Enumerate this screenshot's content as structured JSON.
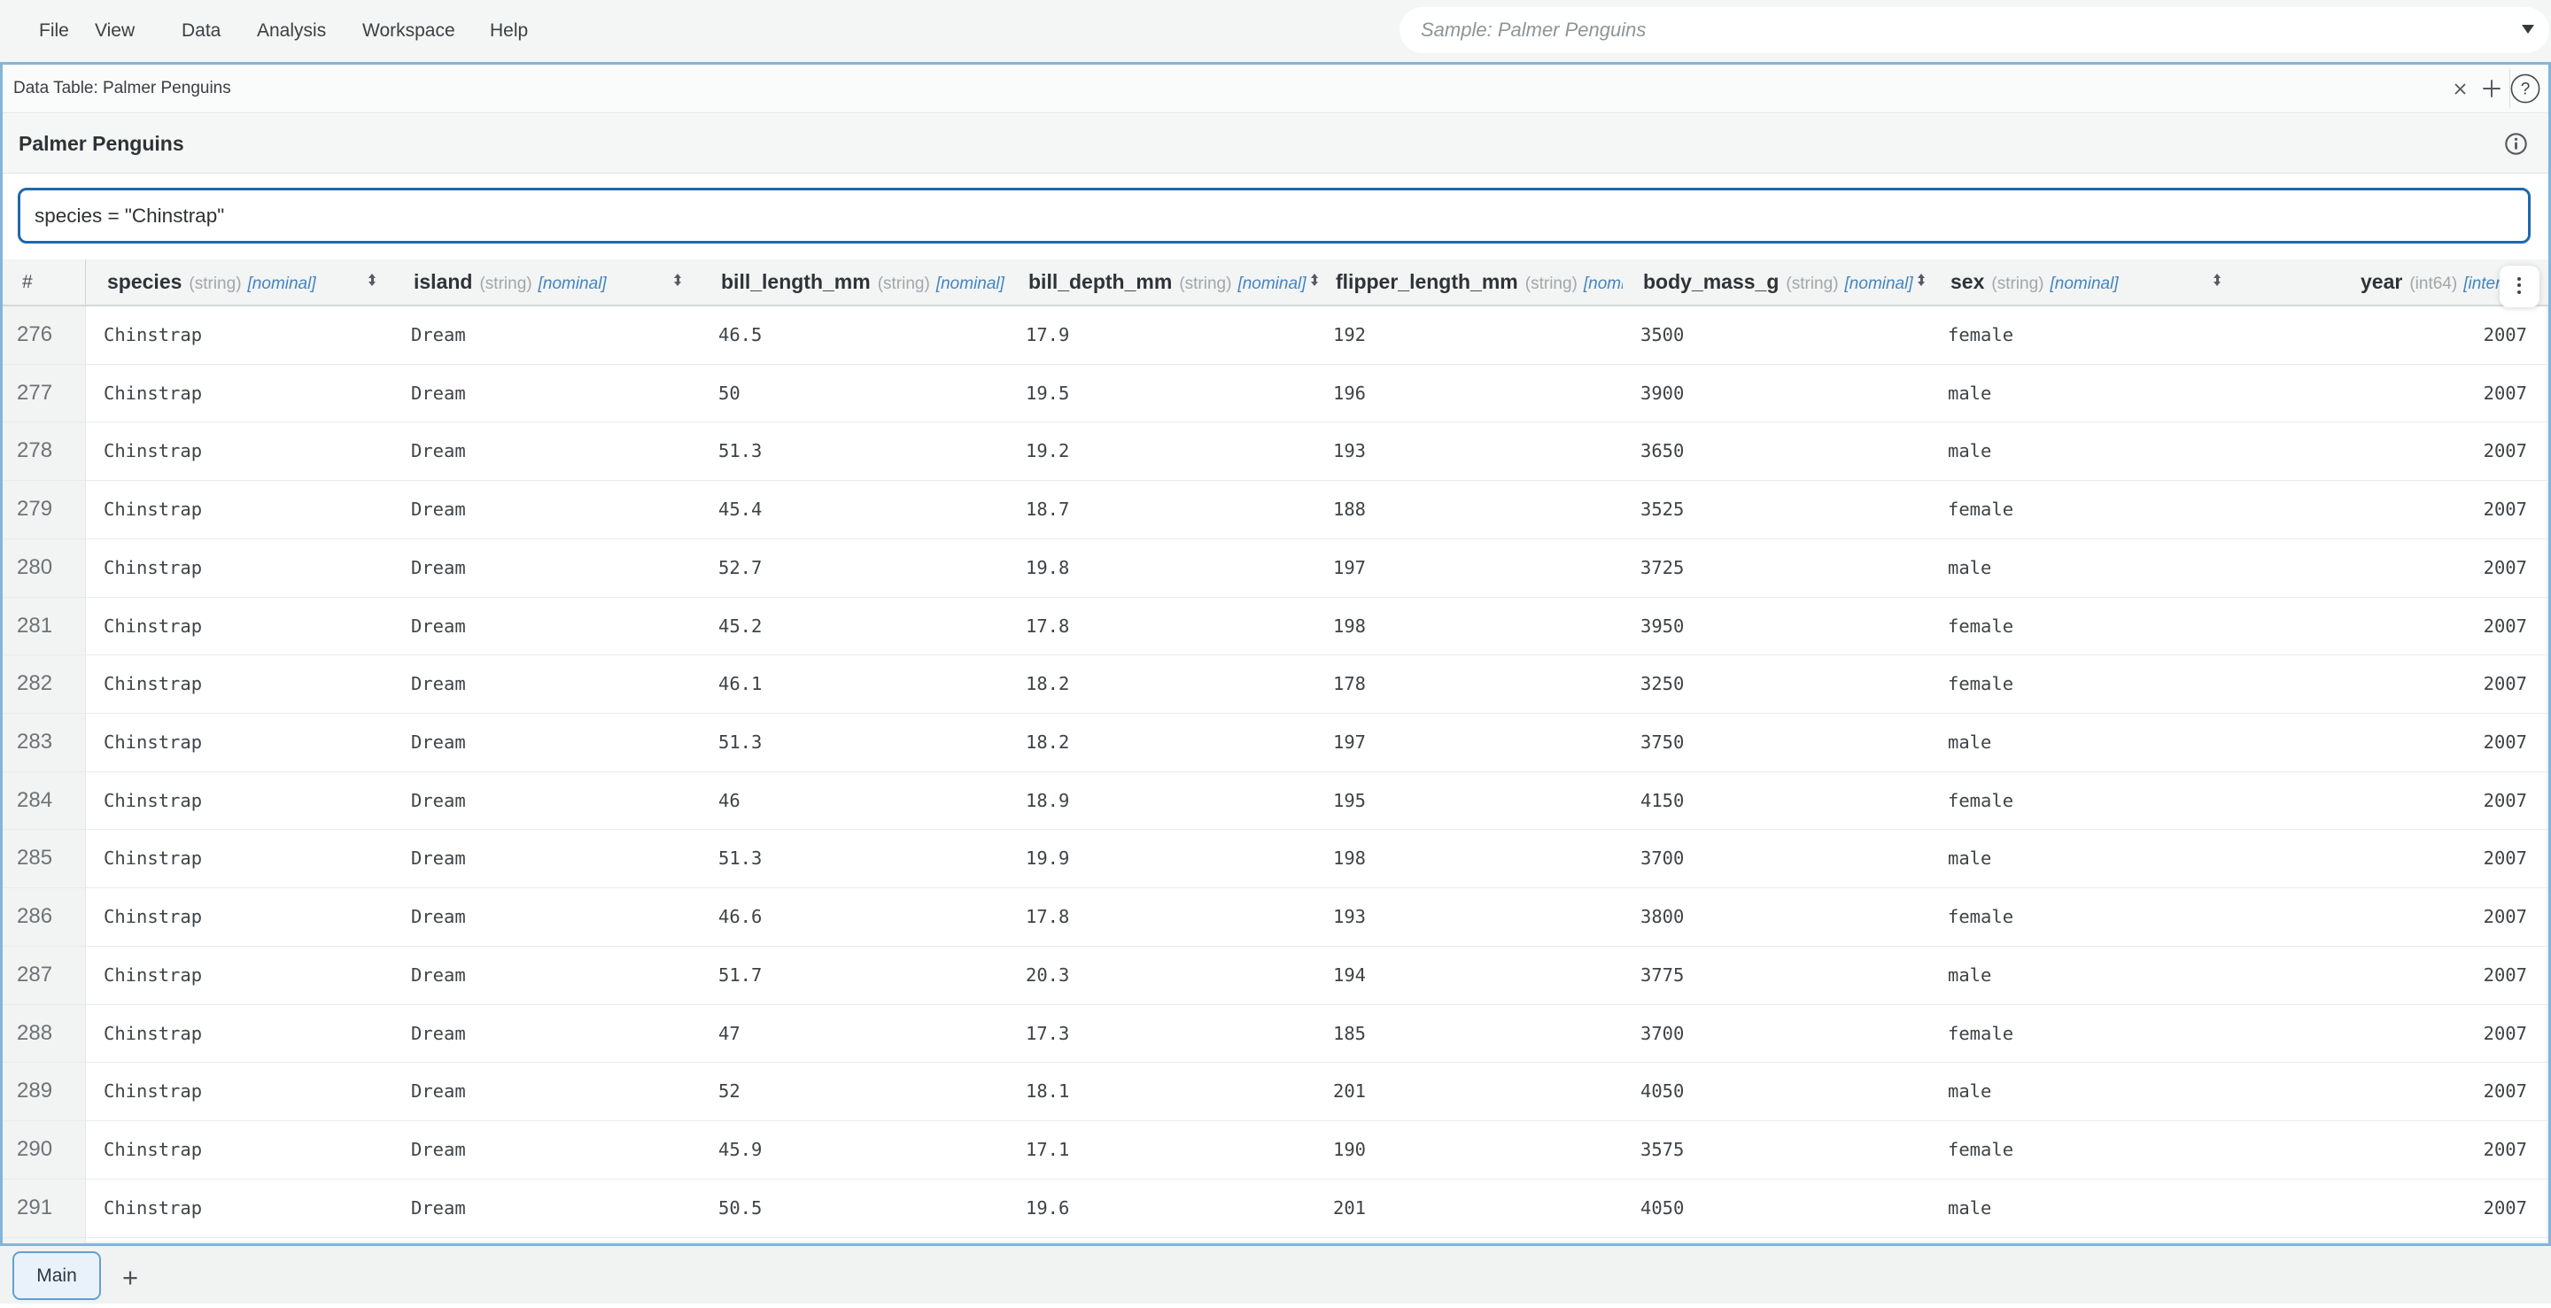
{
  "menu": {
    "items": [
      "File",
      "View",
      "Data",
      "Analysis",
      "Workspace",
      "Help"
    ]
  },
  "workspace_selector": {
    "value": "Sample: Palmer Penguins"
  },
  "panel": {
    "title": "Data Table: Palmer Penguins",
    "dataset_title": "Palmer Penguins",
    "filter": {
      "value": "species = \"Chinstrap\""
    }
  },
  "table": {
    "row_number_header": "#",
    "columns": [
      {
        "name": "species",
        "dtype": "(string)",
        "role": "[nominal]",
        "sortable": true
      },
      {
        "name": "island",
        "dtype": "(string)",
        "role": "[nominal]",
        "sortable": true
      },
      {
        "name": "bill_length_mm",
        "dtype": "(string)",
        "role": "[nominal]",
        "sortable": false
      },
      {
        "name": "bill_depth_mm",
        "dtype": "(string)",
        "role": "[nominal]",
        "sortable": true
      },
      {
        "name": "flipper_length_mm",
        "dtype": "(string)",
        "role": "[nominal]",
        "sortable": false
      },
      {
        "name": "body_mass_g",
        "dtype": "(string)",
        "role": "[nominal]",
        "sortable": true
      },
      {
        "name": "sex",
        "dtype": "(string)",
        "role": "[nominal]",
        "sortable": true
      },
      {
        "name": "year",
        "dtype": "(int64)",
        "role": "[interval]",
        "sortable": false
      }
    ],
    "rows": [
      {
        "num": "276",
        "cells": [
          "Chinstrap",
          "Dream",
          "46.5",
          "17.9",
          "192",
          "3500",
          "female",
          "2007"
        ]
      },
      {
        "num": "277",
        "cells": [
          "Chinstrap",
          "Dream",
          "50",
          "19.5",
          "196",
          "3900",
          "male",
          "2007"
        ]
      },
      {
        "num": "278",
        "cells": [
          "Chinstrap",
          "Dream",
          "51.3",
          "19.2",
          "193",
          "3650",
          "male",
          "2007"
        ]
      },
      {
        "num": "279",
        "cells": [
          "Chinstrap",
          "Dream",
          "45.4",
          "18.7",
          "188",
          "3525",
          "female",
          "2007"
        ]
      },
      {
        "num": "280",
        "cells": [
          "Chinstrap",
          "Dream",
          "52.7",
          "19.8",
          "197",
          "3725",
          "male",
          "2007"
        ]
      },
      {
        "num": "281",
        "cells": [
          "Chinstrap",
          "Dream",
          "45.2",
          "17.8",
          "198",
          "3950",
          "female",
          "2007"
        ]
      },
      {
        "num": "282",
        "cells": [
          "Chinstrap",
          "Dream",
          "46.1",
          "18.2",
          "178",
          "3250",
          "female",
          "2007"
        ]
      },
      {
        "num": "283",
        "cells": [
          "Chinstrap",
          "Dream",
          "51.3",
          "18.2",
          "197",
          "3750",
          "male",
          "2007"
        ]
      },
      {
        "num": "284",
        "cells": [
          "Chinstrap",
          "Dream",
          "46",
          "18.9",
          "195",
          "4150",
          "female",
          "2007"
        ]
      },
      {
        "num": "285",
        "cells": [
          "Chinstrap",
          "Dream",
          "51.3",
          "19.9",
          "198",
          "3700",
          "male",
          "2007"
        ]
      },
      {
        "num": "286",
        "cells": [
          "Chinstrap",
          "Dream",
          "46.6",
          "17.8",
          "193",
          "3800",
          "female",
          "2007"
        ]
      },
      {
        "num": "287",
        "cells": [
          "Chinstrap",
          "Dream",
          "51.7",
          "20.3",
          "194",
          "3775",
          "male",
          "2007"
        ]
      },
      {
        "num": "288",
        "cells": [
          "Chinstrap",
          "Dream",
          "47",
          "17.3",
          "185",
          "3700",
          "female",
          "2007"
        ]
      },
      {
        "num": "289",
        "cells": [
          "Chinstrap",
          "Dream",
          "52",
          "18.1",
          "201",
          "4050",
          "male",
          "2007"
        ]
      },
      {
        "num": "290",
        "cells": [
          "Chinstrap",
          "Dream",
          "45.9",
          "17.1",
          "190",
          "3575",
          "female",
          "2007"
        ]
      },
      {
        "num": "291",
        "cells": [
          "Chinstrap",
          "Dream",
          "50.5",
          "19.6",
          "201",
          "4050",
          "male",
          "2007"
        ]
      }
    ]
  },
  "tabs": {
    "items": [
      {
        "label": "Main",
        "active": true
      }
    ],
    "add_label": "+"
  },
  "colors": {
    "accent_blue": "#1d68af",
    "panel_border_blue": "#85b4da",
    "role_blue": "#4285c0",
    "tab_fill": "#e9f2fa",
    "tab_border": "#63a0cf"
  }
}
